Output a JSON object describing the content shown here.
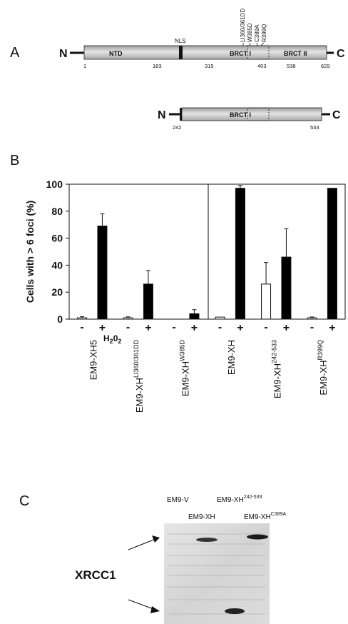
{
  "panel_labels": {
    "a": "A",
    "b": "B",
    "c": "C"
  },
  "panel_a": {
    "full_construct": {
      "n_terminus": "N",
      "c_terminus": "C",
      "domains": {
        "ntd": "NTD",
        "nls": "NLS",
        "brct1": "BRCT I",
        "brct2": "BRCT II"
      },
      "positions": [
        "1",
        "183",
        "315",
        "403",
        "538",
        "629"
      ],
      "mutations": [
        "LI360/361DD",
        "W385D",
        "C389A",
        "R399Q"
      ]
    },
    "truncated_construct": {
      "n_terminus": "N",
      "c_terminus": "C",
      "domain": "BRCT I",
      "positions": [
        "242",
        "533"
      ]
    }
  },
  "panel_c": {
    "lane_labels": {
      "ev": "EM9-V",
      "xh": "EM9-XH",
      "trunc_base": "EM9-XH",
      "trunc_sup": "242-533",
      "c389_base": "EM9-XH",
      "c389_sup": "C389A"
    },
    "protein_label": "XRCC1"
  },
  "chart_data": {
    "type": "bar",
    "ylabel": "Cells with > 6 foci (%)",
    "ylim": [
      0,
      100
    ],
    "yticks": [
      "0",
      "20",
      "40",
      "60",
      "80",
      "100"
    ],
    "treatment_label": "H",
    "treatment_sub1": "2",
    "treatment_mid": "0",
    "treatment_sub2": "2",
    "groups": [
      {
        "base": "EM9-XH5",
        "sup": "",
        "minus_label": "-",
        "plus_label": "+",
        "minus": 1,
        "minus_err": 0.8,
        "plus": 69,
        "plus_err": 9
      },
      {
        "base": "EM9-XH",
        "sup": "LI360/361DD",
        "minus_label": "-",
        "plus_label": "+",
        "minus": 1,
        "minus_err": 0.7,
        "plus": 26,
        "plus_err": 10
      },
      {
        "base": "EM9-XH",
        "sup": "W385D",
        "minus_label": "-",
        "plus_label": "+",
        "minus": 0,
        "minus_err": 0,
        "plus": 4,
        "plus_err": 3
      },
      {
        "base": "EM9-XH",
        "sup": "",
        "minus_label": "-",
        "plus_label": "+",
        "minus": 1.5,
        "minus_err": 0,
        "plus": 97,
        "plus_err": 2
      },
      {
        "base": "EM9-XH",
        "sup": "242-533",
        "minus_label": "-",
        "plus_label": "+",
        "minus": 26,
        "minus_err": 16,
        "plus": 46,
        "plus_err": 21
      },
      {
        "base": "EM9-XH",
        "sup": "R399Q",
        "minus_label": "-",
        "plus_label": "+",
        "minus": 1,
        "minus_err": 0.6,
        "plus": 97,
        "plus_err": 0
      }
    ],
    "series": [
      {
        "name": "-",
        "color": "#ffffff"
      },
      {
        "name": "+",
        "color": "#000000"
      }
    ]
  }
}
